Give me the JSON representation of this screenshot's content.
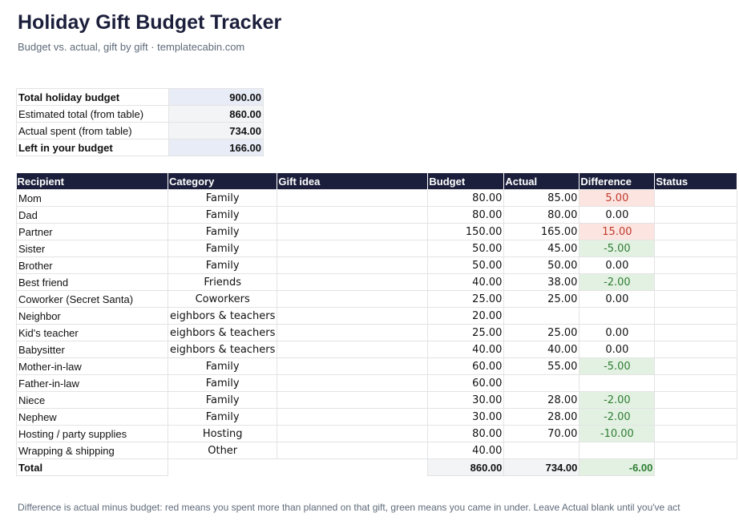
{
  "header": {
    "title": "Holiday Gift Budget Tracker",
    "subtitle": "Budget vs. actual, gift by gift · templatecabin.com"
  },
  "summary": [
    {
      "label": "Total holiday budget",
      "value": "900.00",
      "emphasis": true
    },
    {
      "label": "Estimated total (from table)",
      "value": "860.00",
      "emphasis": false
    },
    {
      "label": "Actual spent (from table)",
      "value": "734.00",
      "emphasis": false
    },
    {
      "label": "Left in your budget",
      "value": "166.00",
      "emphasis": true
    }
  ],
  "table": {
    "columns": [
      "Recipient",
      "Category",
      "Gift idea",
      "Budget",
      "Actual",
      "Difference",
      "Status"
    ],
    "rows": [
      {
        "recipient": "Mom",
        "category": "Family",
        "gift_idea": "",
        "budget": "80.00",
        "actual": "85.00",
        "difference": "5.00",
        "status": "",
        "diff_sign": "pos"
      },
      {
        "recipient": "Dad",
        "category": "Family",
        "gift_idea": "",
        "budget": "80.00",
        "actual": "80.00",
        "difference": "0.00",
        "status": "",
        "diff_sign": "zero"
      },
      {
        "recipient": "Partner",
        "category": "Family",
        "gift_idea": "",
        "budget": "150.00",
        "actual": "165.00",
        "difference": "15.00",
        "status": "",
        "diff_sign": "pos"
      },
      {
        "recipient": "Sister",
        "category": "Family",
        "gift_idea": "",
        "budget": "50.00",
        "actual": "45.00",
        "difference": "-5.00",
        "status": "",
        "diff_sign": "neg"
      },
      {
        "recipient": "Brother",
        "category": "Family",
        "gift_idea": "",
        "budget": "50.00",
        "actual": "50.00",
        "difference": "0.00",
        "status": "",
        "diff_sign": "zero"
      },
      {
        "recipient": "Best friend",
        "category": "Friends",
        "gift_idea": "",
        "budget": "40.00",
        "actual": "38.00",
        "difference": "-2.00",
        "status": "",
        "diff_sign": "neg"
      },
      {
        "recipient": "Coworker (Secret Santa)",
        "category": "Coworkers",
        "gift_idea": "",
        "budget": "25.00",
        "actual": "25.00",
        "difference": "0.00",
        "status": "",
        "diff_sign": "zero"
      },
      {
        "recipient": "Neighbor",
        "category": "eighbors & teachers",
        "gift_idea": "",
        "budget": "20.00",
        "actual": "",
        "difference": "",
        "status": "",
        "diff_sign": "none"
      },
      {
        "recipient": "Kid's teacher",
        "category": "eighbors & teachers",
        "gift_idea": "",
        "budget": "25.00",
        "actual": "25.00",
        "difference": "0.00",
        "status": "",
        "diff_sign": "zero"
      },
      {
        "recipient": "Babysitter",
        "category": "eighbors & teachers",
        "gift_idea": "",
        "budget": "40.00",
        "actual": "40.00",
        "difference": "0.00",
        "status": "",
        "diff_sign": "zero"
      },
      {
        "recipient": "Mother-in-law",
        "category": "Family",
        "gift_idea": "",
        "budget": "60.00",
        "actual": "55.00",
        "difference": "-5.00",
        "status": "",
        "diff_sign": "neg"
      },
      {
        "recipient": "Father-in-law",
        "category": "Family",
        "gift_idea": "",
        "budget": "60.00",
        "actual": "",
        "difference": "",
        "status": "",
        "diff_sign": "none"
      },
      {
        "recipient": "Niece",
        "category": "Family",
        "gift_idea": "",
        "budget": "30.00",
        "actual": "28.00",
        "difference": "-2.00",
        "status": "",
        "diff_sign": "neg"
      },
      {
        "recipient": "Nephew",
        "category": "Family",
        "gift_idea": "",
        "budget": "30.00",
        "actual": "28.00",
        "difference": "-2.00",
        "status": "",
        "diff_sign": "neg"
      },
      {
        "recipient": "Hosting / party supplies",
        "category": "Hosting",
        "gift_idea": "",
        "budget": "80.00",
        "actual": "70.00",
        "difference": "-10.00",
        "status": "",
        "diff_sign": "neg"
      },
      {
        "recipient": "Wrapping & shipping",
        "category": "Other",
        "gift_idea": "",
        "budget": "40.00",
        "actual": "",
        "difference": "",
        "status": "",
        "diff_sign": "none"
      }
    ],
    "total": {
      "label": "Total",
      "budget": "860.00",
      "actual": "734.00",
      "difference": "-6.00"
    }
  },
  "footnote": "Difference is actual minus budget: red means you spent more than planned on that gift, green means you came in under. Leave Actual blank until you've act",
  "colors": {
    "header_bg": "#1b1f3b",
    "over_budget": "#c0392b",
    "under_budget": "#2e7d32"
  }
}
